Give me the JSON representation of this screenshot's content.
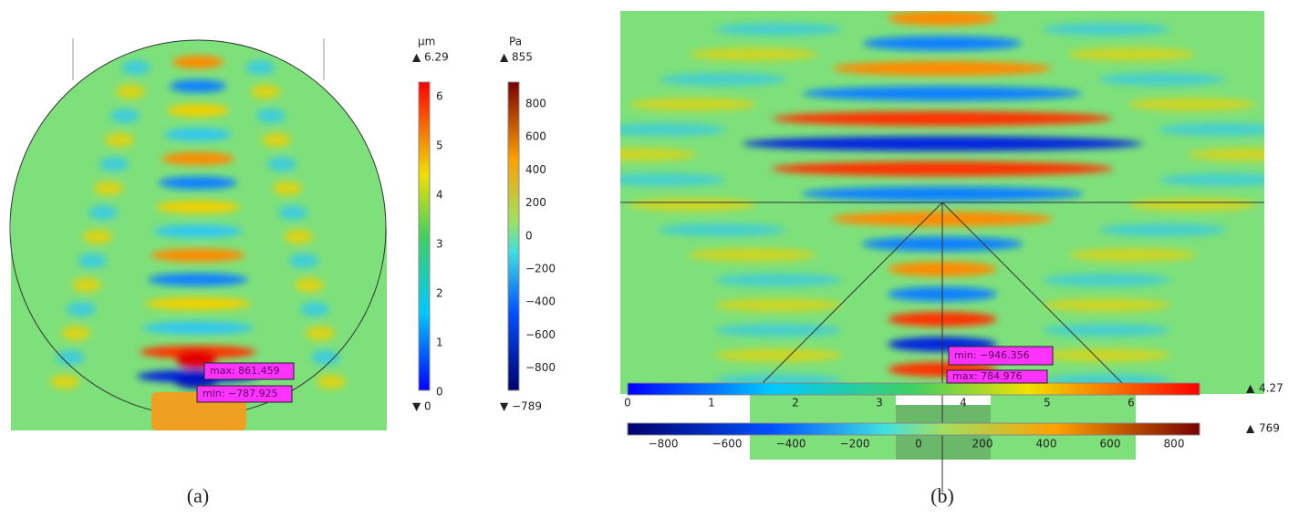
{
  "panel_a": {
    "label": "(a)",
    "displacement_bar": {
      "unit": "µm",
      "max": "6.29",
      "min": "0",
      "ticks": [
        "0",
        "1",
        "2",
        "3",
        "4",
        "5",
        "6"
      ]
    },
    "pressure_bar": {
      "unit": "Pa",
      "max": "855",
      "min": "−789",
      "ticks": [
        "800",
        "600",
        "400",
        "200",
        "0",
        "−200",
        "−400",
        "−600",
        "−800"
      ]
    },
    "annotations": [
      "max: 861.459",
      "min: −787.925"
    ]
  },
  "panel_b": {
    "label": "(b)",
    "displacement_bar": {
      "max": "4.27",
      "ticks": [
        "0",
        "1",
        "2",
        "3",
        "4",
        "5",
        "6"
      ]
    },
    "pressure_bar": {
      "max": "769",
      "ticks": [
        "−800",
        "−600",
        "−400",
        "−200",
        "0",
        "200",
        "400",
        "600",
        "800"
      ]
    },
    "annotations": [
      "min: −946.356",
      "max: 784.976"
    ]
  }
}
